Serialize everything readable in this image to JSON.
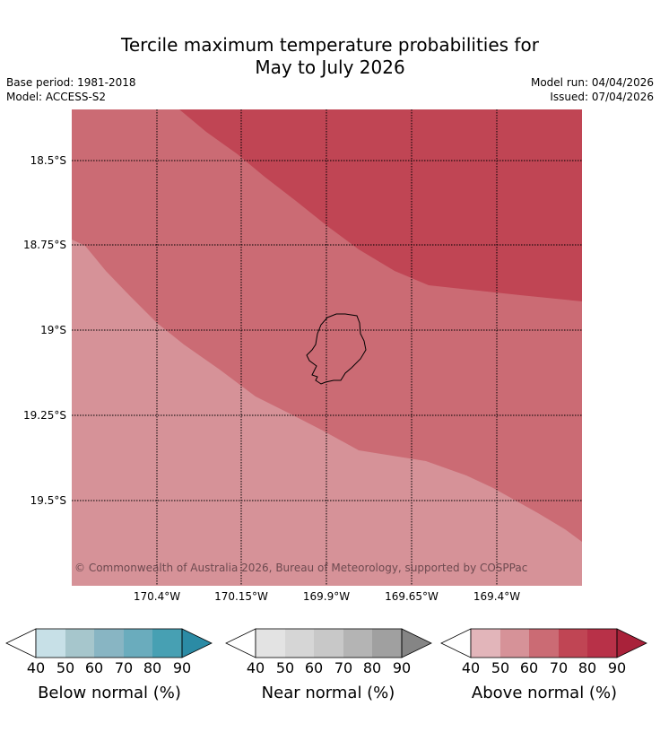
{
  "title_line1": "Tercile maximum temperature probabilities for",
  "title_line2": "May to July 2026",
  "meta": {
    "base_period": "Base period: 1981-2018",
    "model": "Model: ACCESS-S2",
    "model_run": "Model run: 04/04/2026",
    "issued": "Issued: 07/04/2026"
  },
  "map": {
    "y_labels": [
      "18.5°S",
      "18.75°S",
      "19°S",
      "19.25°S",
      "19.5°S"
    ],
    "x_labels": [
      "170.4°W",
      "170.15°W",
      "169.9°W",
      "169.65°W",
      "169.4°W"
    ],
    "copyright": "© Commonwealth of Australia 2026, Bureau of Meteorology, supported by COSPPac",
    "colors": {
      "band_50_60": "#d69298",
      "band_60_70": "#cb6b74",
      "band_70_80": "#c04554",
      "coast": "#000000"
    }
  },
  "legends": [
    {
      "name": "below",
      "title": "Below normal (%)",
      "ticks": [
        "40",
        "50",
        "60",
        "70",
        "80",
        "90"
      ],
      "colors": [
        "#c7e0e7",
        "#a6c6cc",
        "#88b5c3",
        "#6aacbd",
        "#47a0b3",
        "#2b8ba5"
      ]
    },
    {
      "name": "near",
      "title": "Near normal (%)",
      "ticks": [
        "40",
        "50",
        "60",
        "70",
        "80",
        "90"
      ],
      "colors": [
        "#e3e3e3",
        "#d6d6d6",
        "#c8c8c8",
        "#b4b4b4",
        "#a0a0a0",
        "#858585"
      ]
    },
    {
      "name": "above",
      "title": "Above normal (%)",
      "ticks": [
        "40",
        "50",
        "60",
        "70",
        "80",
        "90"
      ],
      "colors": [
        "#e2b5ba",
        "#d69298",
        "#cb6b74",
        "#c04554",
        "#b83148",
        "#a9223a"
      ]
    }
  ]
}
